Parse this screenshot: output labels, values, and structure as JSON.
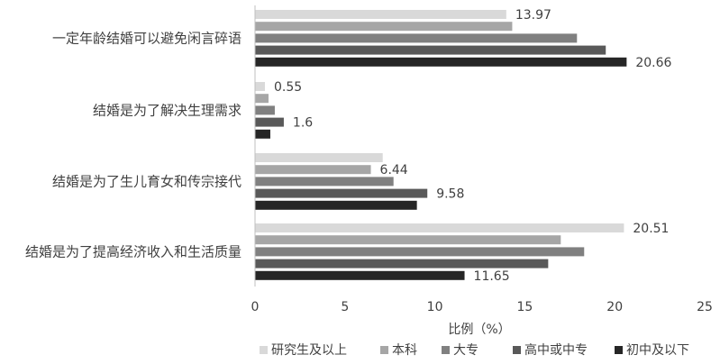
{
  "chart_data": {
    "type": "bar",
    "orientation": "horizontal",
    "title": "",
    "xlabel": "比例（%）",
    "ylabel": "",
    "xlim": [
      0,
      25
    ],
    "x_ticks": [
      0,
      5,
      10,
      15,
      20,
      25
    ],
    "grid": false,
    "legend_position": "bottom",
    "categories": [
      "一定年龄结婚可以避免闲言碎语",
      "结婚是为了解决生理需求",
      "结婚是为了生儿育女和传宗接代",
      "结婚是为了提高经济收入和生活质量"
    ],
    "series": [
      {
        "name": "研究生及以上",
        "color": "#d9d9d9",
        "values": [
          13.97,
          0.55,
          7.1,
          20.51
        ],
        "labels": [
          "13.97",
          "0.55",
          "",
          "20.51"
        ]
      },
      {
        "name": "本科",
        "color": "#a6a6a6",
        "values": [
          14.3,
          0.75,
          6.44,
          17.0
        ],
        "labels": [
          "",
          "",
          "6.44",
          ""
        ]
      },
      {
        "name": "大专",
        "color": "#808080",
        "values": [
          17.9,
          1.1,
          7.7,
          18.3
        ],
        "labels": [
          "",
          "",
          "",
          ""
        ]
      },
      {
        "name": "高中或中专",
        "color": "#595959",
        "values": [
          19.5,
          1.6,
          9.58,
          16.3
        ],
        "labels": [
          "",
          "1.6",
          "9.58",
          ""
        ]
      },
      {
        "name": "初中及以下",
        "color": "#262626",
        "values": [
          20.66,
          0.85,
          9.0,
          11.65
        ],
        "labels": [
          "20.66",
          "",
          "",
          "11.65"
        ]
      }
    ]
  }
}
